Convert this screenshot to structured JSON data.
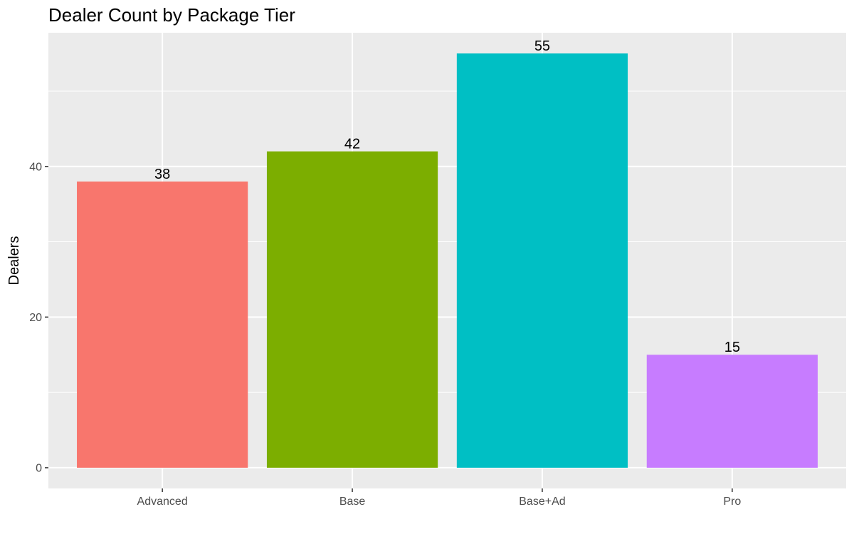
{
  "chart_data": {
    "type": "bar",
    "title": "Dealer Count by Package Tier",
    "xlabel": "",
    "ylabel": "Dealers",
    "categories": [
      "Advanced",
      "Base",
      "Base+Ad",
      "Pro"
    ],
    "values": [
      38,
      42,
      55,
      15
    ],
    "colors": [
      "#F8766D",
      "#7CAE00",
      "#00BFC4",
      "#C77CFF"
    ],
    "ylim": [
      -2.75,
      57.75
    ],
    "yticks": [
      0,
      20,
      40
    ],
    "grid": true,
    "legend": "none",
    "panel_background": "#EBEBEB",
    "grid_color": "#FFFFFF"
  }
}
